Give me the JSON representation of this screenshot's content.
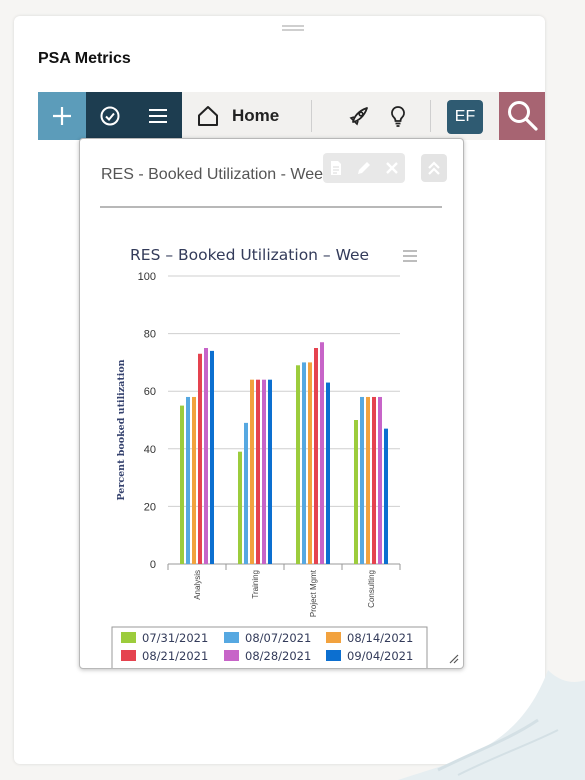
{
  "page": {
    "title": "PSA Metrics"
  },
  "toolbar": {
    "home_label": "Home",
    "avatar_initials": "EF",
    "colors": {
      "plus": "#5c9cba",
      "nav": "#1d3d50",
      "search": "#a76472",
      "avatar": "#2f5b72"
    },
    "icons": [
      "plus-icon",
      "check-circle-icon",
      "menu-icon",
      "home-icon",
      "rocket-icon",
      "lightbulb-icon",
      "search-icon"
    ]
  },
  "widget": {
    "title": "RES - Booked Utilization - Wee",
    "actions": [
      "document-icon",
      "pencil-icon",
      "close-icon"
    ],
    "collapse_icon": "double-chevron-up-icon"
  },
  "chart_data": {
    "type": "bar",
    "title": "RES – Booked Utilization – Wee",
    "ylabel": "Percent booked utilization",
    "xlabel": "",
    "ylim": [
      0,
      100
    ],
    "yticks": [
      0,
      20,
      40,
      60,
      80,
      100
    ],
    "grid": true,
    "legend_position": "bottom",
    "categories": [
      "Analysis",
      "Training",
      "Project Mgmt",
      "Consulting"
    ],
    "series": [
      {
        "name": "07/31/2021",
        "color": "#9ccc3c",
        "values": [
          55,
          39,
          69,
          50
        ]
      },
      {
        "name": "08/07/2021",
        "color": "#56a8e1",
        "values": [
          58,
          49,
          70,
          58
        ]
      },
      {
        "name": "08/14/2021",
        "color": "#f2a23e",
        "values": [
          58,
          64,
          70,
          58
        ]
      },
      {
        "name": "08/21/2021",
        "color": "#e5434f",
        "values": [
          73,
          64,
          75,
          58
        ]
      },
      {
        "name": "08/28/2021",
        "color": "#c764c8",
        "values": [
          75,
          64,
          77,
          58
        ]
      },
      {
        "name": "09/04/2021",
        "color": "#0c6fd0",
        "values": [
          74,
          64,
          63,
          47
        ]
      }
    ]
  }
}
